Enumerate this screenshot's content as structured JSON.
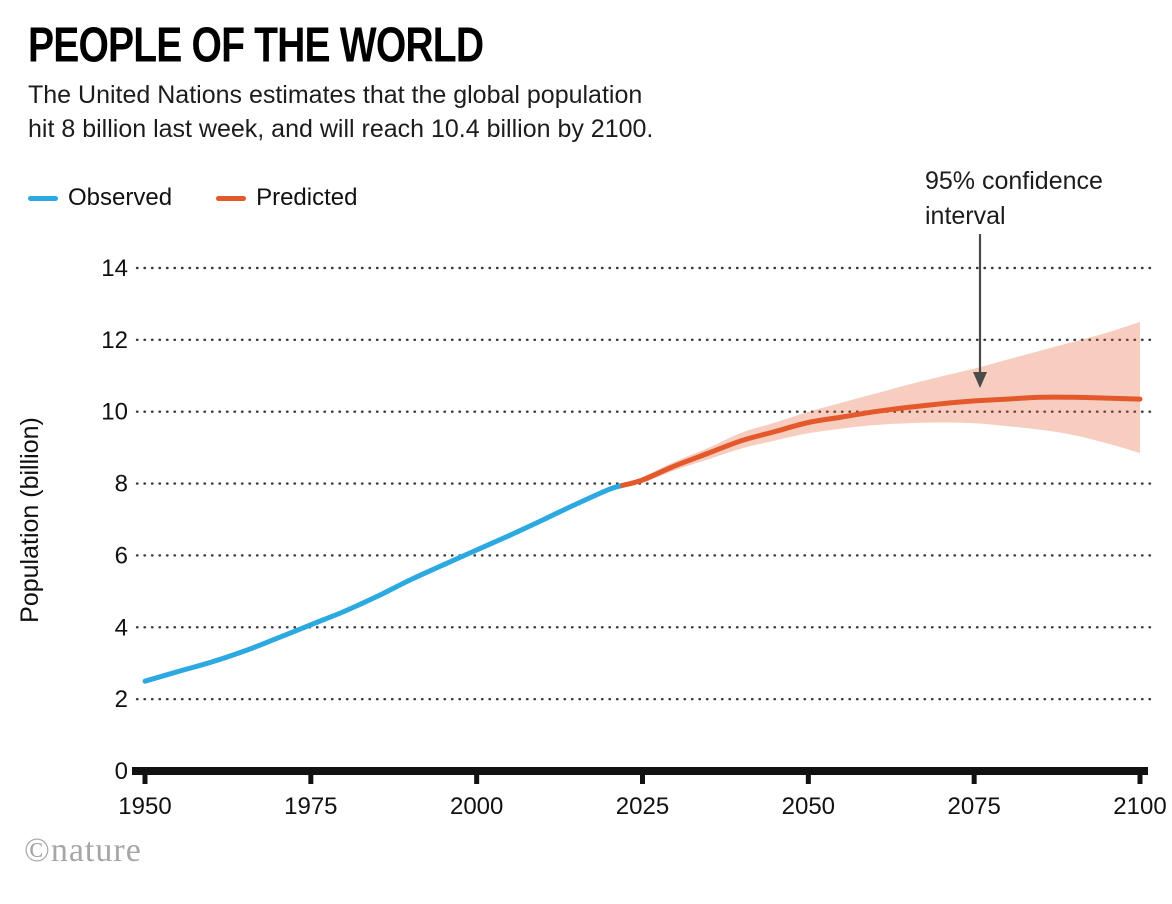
{
  "header": {
    "title": "PEOPLE OF THE WORLD",
    "subtitle_line1": "The United Nations estimates that the global population",
    "subtitle_line2": "hit 8 billion last week, and will reach 10.4 billion by 2100."
  },
  "legend": {
    "observed": "Observed",
    "predicted": "Predicted"
  },
  "annotation": {
    "line1": "95% confidence",
    "line2": "interval"
  },
  "footer": {
    "credit": "©nature"
  },
  "colors": {
    "observed": "#2CA9E0",
    "predicted": "#E4592B",
    "band": "rgba(228,89,43,0.30)",
    "grid": "#3a3a3a",
    "axis": "#111111",
    "arrow": "#4a4a4a",
    "text": "#111111"
  },
  "chart_data": {
    "type": "line",
    "title": "PEOPLE OF THE WORLD",
    "subtitle": "The United Nations estimates that the global population hit 8 billion last week, and will reach 10.4 billion by 2100.",
    "xlabel": "",
    "ylabel": "Population (billion)",
    "xlim": [
      1950,
      2100
    ],
    "ylim": [
      0,
      14
    ],
    "xticks": [
      1950,
      1975,
      2000,
      2025,
      2050,
      2075,
      2100
    ],
    "yticks": [
      0,
      2,
      4,
      6,
      8,
      10,
      12,
      14
    ],
    "grid": "dotted-horizontal",
    "legend_position": "top-left",
    "annotations": [
      "95% confidence interval"
    ],
    "series": [
      {
        "name": "Observed",
        "color": "#2CA9E0",
        "x": [
          1950,
          1955,
          1960,
          1965,
          1970,
          1975,
          1980,
          1985,
          1990,
          1995,
          2000,
          2005,
          2010,
          2015,
          2020,
          2022
        ],
        "y": [
          2.5,
          2.77,
          3.03,
          3.34,
          3.7,
          4.07,
          4.44,
          4.86,
          5.32,
          5.74,
          6.15,
          6.56,
          6.99,
          7.43,
          7.84,
          7.95
        ]
      },
      {
        "name": "Predicted",
        "color": "#E4592B",
        "x": [
          2022,
          2025,
          2030,
          2035,
          2040,
          2045,
          2050,
          2055,
          2060,
          2065,
          2070,
          2075,
          2080,
          2085,
          2090,
          2095,
          2100
        ],
        "y": [
          7.95,
          8.1,
          8.5,
          8.85,
          9.2,
          9.45,
          9.7,
          9.85,
          10.0,
          10.12,
          10.22,
          10.3,
          10.35,
          10.4,
          10.4,
          10.38,
          10.35
        ]
      }
    ],
    "band": {
      "name": "95% confidence interval",
      "x": [
        2022,
        2025,
        2030,
        2035,
        2040,
        2045,
        2050,
        2055,
        2060,
        2065,
        2070,
        2075,
        2080,
        2085,
        2090,
        2095,
        2100
      ],
      "lower": [
        7.95,
        8.02,
        8.38,
        8.68,
        8.98,
        9.2,
        9.4,
        9.53,
        9.63,
        9.68,
        9.7,
        9.68,
        9.6,
        9.5,
        9.35,
        9.12,
        8.85
      ],
      "upper": [
        7.95,
        8.18,
        8.62,
        9.0,
        9.42,
        9.7,
        10.0,
        10.25,
        10.5,
        10.75,
        10.98,
        11.2,
        11.45,
        11.7,
        11.95,
        12.2,
        12.5
      ]
    }
  }
}
